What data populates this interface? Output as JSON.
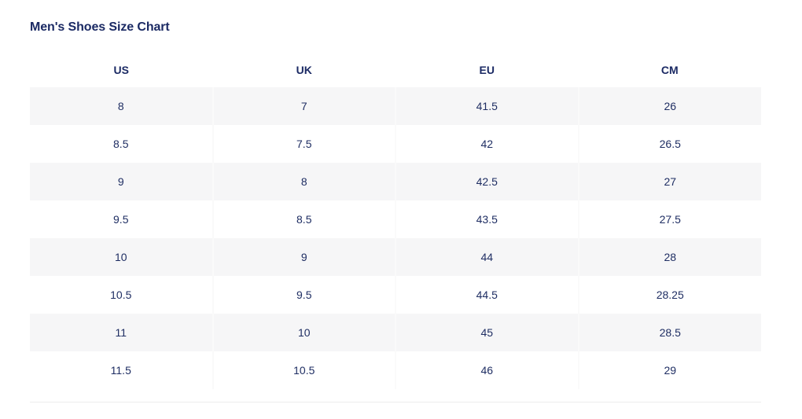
{
  "page": {
    "title": "Men's Shoes Size Chart"
  },
  "table": {
    "columns": [
      "US",
      "UK",
      "EU",
      "CM"
    ],
    "rows": [
      [
        "8",
        "7",
        "41.5",
        "26"
      ],
      [
        "8.5",
        "7.5",
        "42",
        "26.5"
      ],
      [
        "9",
        "8",
        "42.5",
        "27"
      ],
      [
        "9.5",
        "8.5",
        "43.5",
        "27.5"
      ],
      [
        "10",
        "9",
        "44",
        "28"
      ],
      [
        "10.5",
        "9.5",
        "44.5",
        "28.25"
      ],
      [
        "11",
        "10",
        "45",
        "28.5"
      ],
      [
        "11.5",
        "10.5",
        "46",
        "29"
      ]
    ]
  },
  "colors": {
    "text_navy": "#1b2a64",
    "alt_row_bg": "#f6f6f7",
    "column_separator": "#fafafa",
    "bottom_divider": "#ededed"
  },
  "chart_data": {
    "type": "table",
    "title": "Men's Shoes Size Chart",
    "columns": [
      "US",
      "UK",
      "EU",
      "CM"
    ],
    "rows": [
      [
        8,
        7,
        41.5,
        26
      ],
      [
        8.5,
        7.5,
        42,
        26.5
      ],
      [
        9,
        8,
        42.5,
        27
      ],
      [
        9.5,
        8.5,
        43.5,
        27.5
      ],
      [
        10,
        9,
        44,
        28
      ],
      [
        10.5,
        9.5,
        44.5,
        28.25
      ],
      [
        11,
        10,
        45,
        28.5
      ],
      [
        11.5,
        10.5,
        46,
        29
      ]
    ],
    "legend_position": "none",
    "grid": "alternating-row-shading"
  }
}
